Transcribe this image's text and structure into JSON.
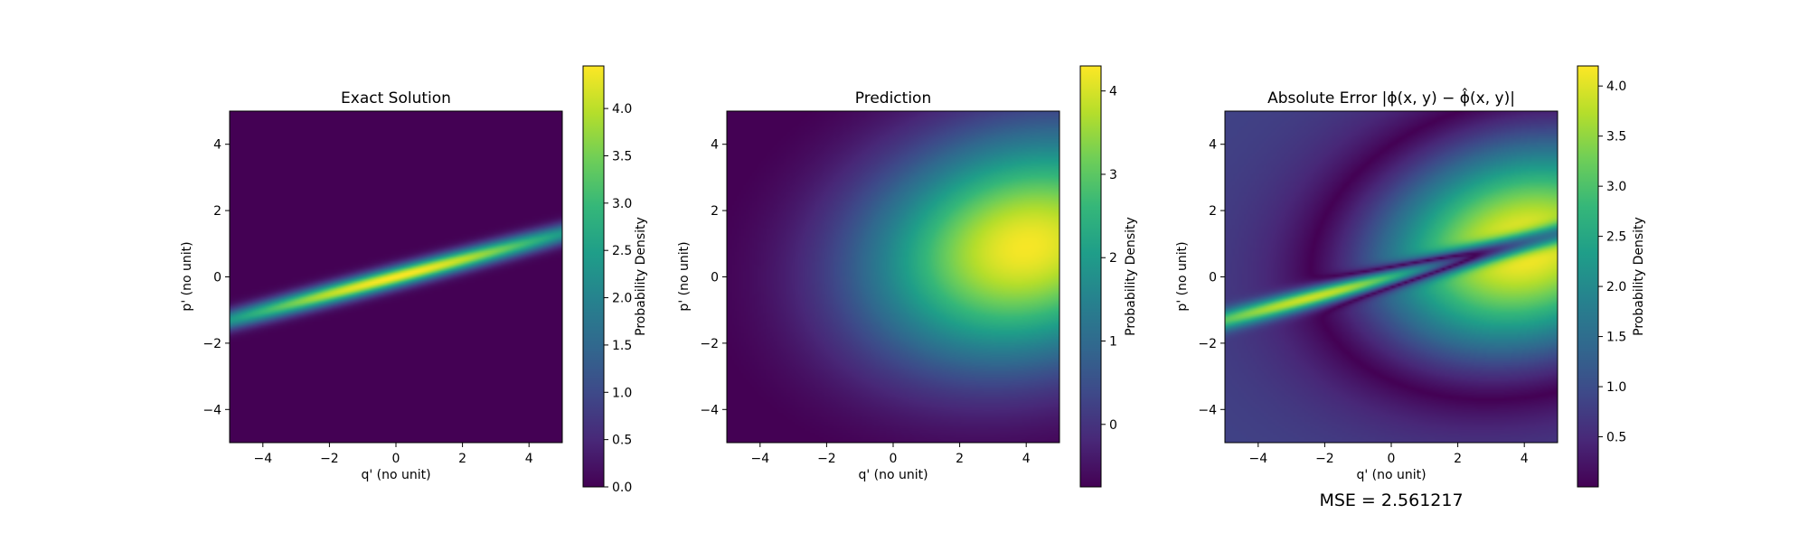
{
  "colormap": [
    "#440154",
    "#482878",
    "#3e4989",
    "#31688e",
    "#26828e",
    "#1f9e89",
    "#35b779",
    "#6ece58",
    "#b5de2b",
    "#fde725"
  ],
  "chart_data": [
    {
      "type": "heatmap",
      "title": "Exact Solution",
      "xlabel": "q' (no unit)",
      "ylabel": "p' (no unit)",
      "xlim": [
        -5,
        5
      ],
      "ylim": [
        -5,
        5
      ],
      "xticks": [
        "−4",
        "−2",
        "0",
        "2",
        "4"
      ],
      "yticks": [
        "−4",
        "−2",
        "0",
        "2",
        "4"
      ],
      "colorbar": {
        "label": "Probability Density",
        "range": [
          0.0,
          4.45
        ],
        "ticks": [
          {
            "value": 0.0,
            "label": "0.0"
          },
          {
            "value": 0.5,
            "label": "0.5"
          },
          {
            "value": 1.0,
            "label": "1.0"
          },
          {
            "value": 1.5,
            "label": "1.5"
          },
          {
            "value": 2.0,
            "label": "2.0"
          },
          {
            "value": 2.5,
            "label": "2.5"
          },
          {
            "value": 3.0,
            "label": "3.0"
          },
          {
            "value": 3.5,
            "label": "3.5"
          },
          {
            "value": 4.0,
            "label": "4.0"
          }
        ]
      },
      "field": "exact"
    },
    {
      "type": "heatmap",
      "title": "Prediction",
      "xlabel": "q' (no unit)",
      "ylabel": "p' (no unit)",
      "xlim": [
        -5,
        5
      ],
      "ylim": [
        -5,
        5
      ],
      "xticks": [
        "−4",
        "−2",
        "0",
        "2",
        "4"
      ],
      "yticks": [
        "−4",
        "−2",
        "0",
        "2",
        "4"
      ],
      "colorbar": {
        "label": "Probability Density",
        "range": [
          -0.75,
          4.3
        ],
        "ticks": [
          {
            "value": 0,
            "label": "0"
          },
          {
            "value": 1,
            "label": "1"
          },
          {
            "value": 2,
            "label": "2"
          },
          {
            "value": 3,
            "label": "3"
          },
          {
            "value": 4,
            "label": "4"
          }
        ]
      },
      "field": "prediction"
    },
    {
      "type": "heatmap",
      "title": "Absolute Error |ϕ(x, y) − ϕ̂(x, y)|",
      "xlabel": "q' (no unit)",
      "ylabel": "p' (no unit)",
      "xlim": [
        -5,
        5
      ],
      "ylim": [
        -5,
        5
      ],
      "xticks": [
        "−4",
        "−2",
        "0",
        "2",
        "4"
      ],
      "yticks": [
        "−4",
        "−2",
        "0",
        "2",
        "4"
      ],
      "colorbar": {
        "label": "Probability Density",
        "range": [
          0.0,
          4.2
        ],
        "ticks": [
          {
            "value": 0.5,
            "label": "0.5"
          },
          {
            "value": 1.0,
            "label": "1.0"
          },
          {
            "value": 1.5,
            "label": "1.5"
          },
          {
            "value": 2.0,
            "label": "2.0"
          },
          {
            "value": 2.5,
            "label": "2.5"
          },
          {
            "value": 3.0,
            "label": "3.0"
          },
          {
            "value": 3.5,
            "label": "3.5"
          },
          {
            "value": 4.0,
            "label": "4.0"
          }
        ]
      },
      "field": "error",
      "annotation": "MSE = 2.561217"
    }
  ]
}
